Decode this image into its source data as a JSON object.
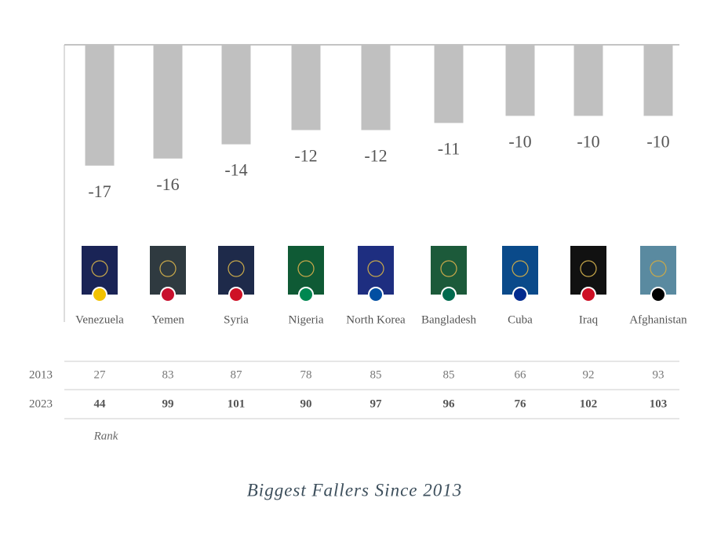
{
  "chart_data": {
    "type": "bar",
    "title": "Biggest Fallers Since 2013",
    "categories": [
      "Venezuela",
      "Yemen",
      "Syria",
      "Nigeria",
      "North Korea",
      "Bangladesh",
      "Cuba",
      "Iraq",
      "Afghanistan"
    ],
    "values": [
      -17,
      -16,
      -14,
      -12,
      -12,
      -11,
      -10,
      -10,
      -10
    ],
    "color": "#c0c0c0",
    "table": {
      "rows": [
        {
          "label": "2013",
          "values": [
            27,
            83,
            87,
            78,
            85,
            85,
            66,
            92,
            93
          ]
        },
        {
          "label": "2023",
          "values": [
            44,
            99,
            101,
            90,
            97,
            96,
            76,
            102,
            103
          ]
        }
      ],
      "note": "Rank"
    }
  }
}
